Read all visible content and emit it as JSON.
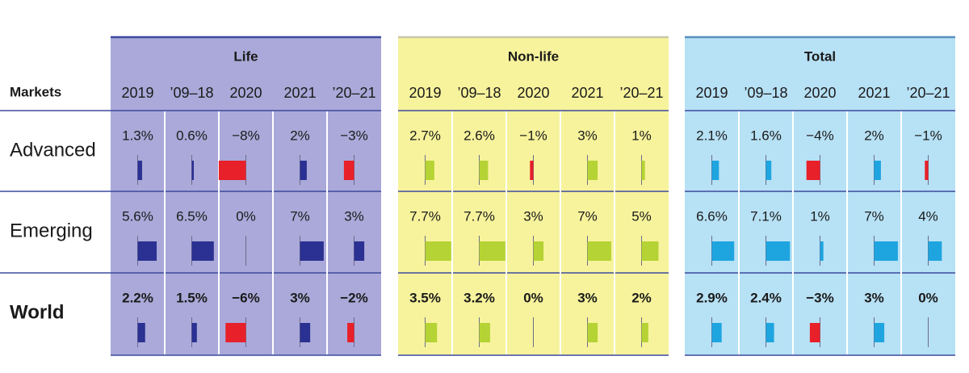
{
  "header": {
    "markets": "Markets"
  },
  "rows": [
    "Advanced",
    "Emerging",
    "World"
  ],
  "groups": [
    {
      "name": "Life",
      "background": "#aaa9d9",
      "border": "#3d4a9e",
      "color": "#2b3192",
      "negative_color": "#e8202a",
      "columns": [
        "2019",
        "’09–18",
        "2020",
        "2021",
        "’20–21"
      ],
      "rows": [
        {
          "values": [
            1.3,
            0.6,
            -8,
            2,
            -3
          ],
          "value_labels": [
            "1.3%",
            "0.6%",
            "−8%",
            "2%",
            "−3%"
          ]
        },
        {
          "values": [
            5.6,
            6.5,
            0,
            7,
            3
          ],
          "value_labels": [
            "5.6%",
            "6.5%",
            "0%",
            "7%",
            "3%"
          ]
        },
        {
          "values": [
            2.2,
            1.5,
            -6,
            3,
            -2
          ],
          "value_labels": [
            "2.2%",
            "1.5%",
            "−6%",
            "3%",
            "−2%"
          ]
        }
      ]
    },
    {
      "name": "Non-life",
      "background": "#f7f39c",
      "border": "#c9c7a8",
      "color": "#b5d334",
      "negative_color": "#e8202a",
      "columns": [
        "2019",
        "’09–18",
        "2020",
        "2021",
        "’20–21"
      ],
      "rows": [
        {
          "values": [
            2.7,
            2.6,
            -1,
            3,
            1
          ],
          "value_labels": [
            "2.7%",
            "2.6%",
            "−1%",
            "3%",
            "1%"
          ]
        },
        {
          "values": [
            7.7,
            7.7,
            3,
            7,
            5
          ],
          "value_labels": [
            "7.7%",
            "7.7%",
            "3%",
            "7%",
            "5%"
          ]
        },
        {
          "values": [
            3.5,
            3.2,
            0,
            3,
            2
          ],
          "value_labels": [
            "3.5%",
            "3.2%",
            "0%",
            "3%",
            "2%"
          ]
        }
      ]
    },
    {
      "name": "Total",
      "background": "#b7e1f5",
      "border": "#5b8fc0",
      "color": "#1ea5e0",
      "negative_color": "#e8202a",
      "columns": [
        "2019",
        "’09–18",
        "2020",
        "2021",
        "’20–21"
      ],
      "rows": [
        {
          "values": [
            2.1,
            1.6,
            -4,
            2,
            -1
          ],
          "value_labels": [
            "2.1%",
            "1.6%",
            "−4%",
            "2%",
            "−1%"
          ]
        },
        {
          "values": [
            6.6,
            7.1,
            1,
            7,
            4
          ],
          "value_labels": [
            "6.6%",
            "7.1%",
            "1%",
            "7%",
            "4%"
          ]
        },
        {
          "values": [
            2.9,
            2.4,
            -3,
            3,
            0
          ],
          "value_labels": [
            "2.9%",
            "2.4%",
            "−3%",
            "3%",
            "0%"
          ]
        }
      ]
    }
  ]
}
